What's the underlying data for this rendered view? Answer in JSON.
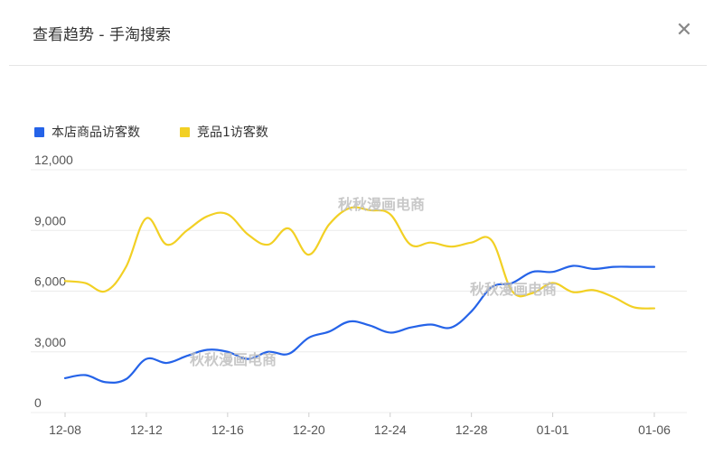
{
  "header": {
    "title": "查看趋势 - 手淘搜索",
    "close_icon": "close-icon"
  },
  "legend": [
    {
      "label": "本店商品访客数",
      "color": "#2563e8"
    },
    {
      "label": "竞品1访客数",
      "color": "#f2d024"
    }
  ],
  "watermarks": [
    "秋秋漫画电商",
    "秋秋漫画电商",
    "秋秋漫画电商"
  ],
  "chart_data": {
    "type": "line",
    "x": [
      "12-08",
      "12-09",
      "12-10",
      "12-11",
      "12-12",
      "12-13",
      "12-14",
      "12-15",
      "12-16",
      "12-17",
      "12-18",
      "12-19",
      "12-20",
      "12-21",
      "12-22",
      "12-23",
      "12-24",
      "12-25",
      "12-26",
      "12-27",
      "12-28",
      "12-29",
      "12-30",
      "12-31",
      "01-01",
      "01-02",
      "01-03",
      "01-04",
      "01-05",
      "01-06"
    ],
    "x_tick_labels": [
      "12-08",
      "12-12",
      "12-16",
      "12-20",
      "12-24",
      "12-28",
      "01-01",
      "01-06"
    ],
    "y_ticks": [
      "12,000",
      "9,000",
      "6,000",
      "3,000",
      "0"
    ],
    "ylim": [
      0,
      12000
    ],
    "grid": true,
    "legend_position": "top-left",
    "series": [
      {
        "name": "本店商品访客数",
        "color": "#2563e8",
        "values": [
          1700,
          1850,
          1500,
          1650,
          2650,
          2450,
          2800,
          3100,
          3000,
          2650,
          3000,
          2900,
          3700,
          4000,
          4500,
          4300,
          3950,
          4200,
          4350,
          4200,
          5000,
          6200,
          6400,
          6950,
          6950,
          7250,
          7100,
          7200,
          7200,
          7200
        ]
      },
      {
        "name": "竞品1访客数",
        "color": "#f2d024",
        "values": [
          6500,
          6400,
          6000,
          7200,
          9600,
          8300,
          9000,
          9700,
          9800,
          8800,
          8300,
          9100,
          7800,
          9300,
          10100,
          10000,
          9800,
          8300,
          8400,
          8200,
          8400,
          8500,
          6000,
          5900,
          6400,
          5950,
          6050,
          5700,
          5200,
          5150
        ]
      }
    ]
  }
}
